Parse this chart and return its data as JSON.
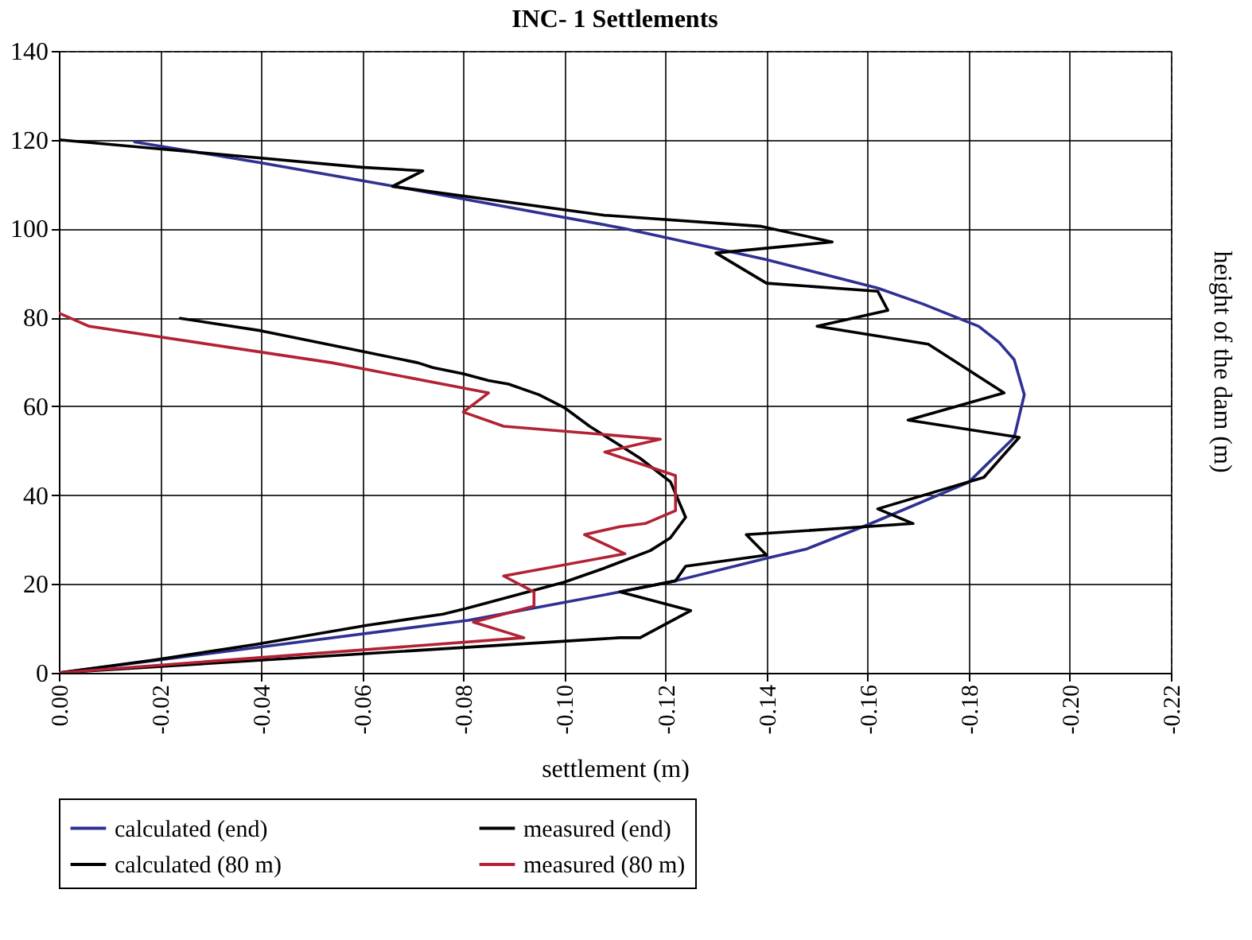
{
  "chart_data": {
    "type": "line",
    "title": "INC- 1 Settlements",
    "xlabel": "settlement (m)",
    "ylabel": "height of the dam (m)",
    "xlim": [
      0,
      -0.22
    ],
    "xticks": [
      {
        "value": 0,
        "label": "0.00"
      },
      -0.02,
      -0.04,
      -0.06,
      -0.08,
      {
        "value": -0.1,
        "label": "-0.10"
      },
      -0.12,
      -0.14,
      -0.16,
      -0.18,
      {
        "value": -0.2,
        "label": "-0.20"
      },
      -0.22
    ],
    "ylim": [
      0,
      140
    ],
    "yticks": [
      0,
      20,
      40,
      60,
      80,
      100,
      120,
      140
    ],
    "grid": true,
    "legend": "bottom",
    "line_style": "solid",
    "marker": "none",
    "series": [
      {
        "name": "calculated (end)",
        "color": "#2e3192",
        "x": [
          0,
          -0.081,
          -0.111,
          -0.122,
          -0.14,
          -0.148,
          -0.16,
          -0.18,
          -0.189,
          -0.191,
          -0.189,
          -0.186,
          -0.182,
          -0.171,
          -0.162,
          -0.14,
          -0.13,
          -0.112,
          -0.065,
          -0.04,
          -0.015
        ],
        "values": [
          0,
          11.8,
          18.2,
          20.7,
          25.8,
          27.9,
          33.3,
          42.9,
          53,
          62.6,
          70.5,
          74.4,
          78,
          83,
          86.6,
          93,
          95.5,
          100,
          109.8,
          114.8,
          119.5
        ]
      },
      {
        "name": "measured (end)",
        "color": "#000000",
        "x": [
          0,
          -0.111,
          -0.115,
          -0.125,
          -0.111,
          -0.122,
          -0.124,
          -0.14,
          -0.136,
          -0.169,
          -0.162,
          -0.183,
          -0.19,
          -0.168,
          -0.187,
          -0.172,
          -0.15,
          -0.164,
          -0.162,
          -0.14,
          -0.13,
          -0.153,
          -0.139,
          -0.108,
          -0.066,
          -0.072,
          -0.06,
          0
        ],
        "values": [
          0,
          7.9,
          7.9,
          14,
          18.2,
          20.7,
          24,
          26.5,
          31.1,
          33.6,
          36.9,
          44,
          53,
          56.9,
          63,
          74,
          78,
          81.6,
          85.9,
          87.7,
          94.5,
          97,
          100.5,
          103,
          109.5,
          113,
          113.8,
          120
        ]
      },
      {
        "name": "calculated (80 m)",
        "color": "#000000",
        "x": [
          0,
          -0.019,
          -0.039,
          -0.061,
          -0.076,
          -0.08,
          -0.1,
          -0.108,
          -0.117,
          -0.121,
          -0.124,
          -0.121,
          -0.115,
          -0.111,
          -0.105,
          -0.1,
          -0.095,
          -0.089,
          -0.085,
          -0.08,
          -0.074,
          -0.071,
          -0.059,
          -0.04,
          -0.024
        ],
        "values": [
          0,
          2.9,
          6.4,
          10.7,
          13.2,
          14.3,
          20.4,
          23.6,
          27.5,
          30.4,
          35,
          43,
          48.3,
          51.2,
          55.5,
          59.7,
          62.6,
          65,
          65.8,
          67.3,
          68.7,
          69.8,
          72.6,
          77,
          79.8
        ]
      },
      {
        "name": "measured (80 m)",
        "color": "#b22234",
        "x": [
          0,
          -0.092,
          -0.082,
          -0.094,
          -0.094,
          -0.088,
          -0.112,
          -0.104,
          -0.111,
          -0.116,
          -0.122,
          -0.122,
          -0.108,
          -0.119,
          -0.088,
          -0.08,
          -0.085,
          -0.054,
          -0.006,
          0
        ],
        "values": [
          0,
          7.9,
          11.4,
          15,
          18.2,
          21.8,
          26.8,
          31.1,
          32.9,
          33.6,
          36.5,
          44.4,
          49.7,
          52.6,
          55.5,
          58.7,
          63,
          69.8,
          78,
          81
        ]
      }
    ]
  }
}
